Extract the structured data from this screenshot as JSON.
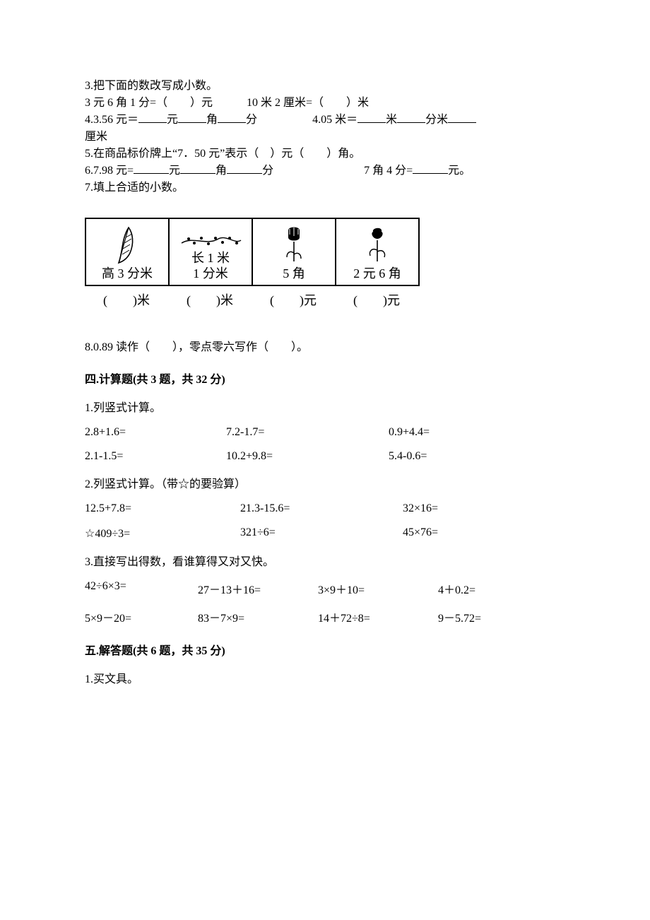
{
  "q3": {
    "prompt": "3.把下面的数改写成小数。",
    "item1_left": "3 元 6 角 1 分=（　　）元",
    "item1_right": "10 米 2 厘米=（　　）米",
    "item2_pre": "4.3.56 元＝",
    "item2_u1": "元",
    "item2_u2": "角",
    "item2_u3": "分",
    "item2_mid": "4.05 米＝",
    "item2_u4": "米",
    "item2_u5": "分米",
    "item2_tail": "厘米"
  },
  "q5": {
    "text": "5.在商品标价牌上“7．50 元”表示（　）元（　　）角。"
  },
  "q6": {
    "pre": "6.7.98 元=",
    "u1": "元",
    "u2": "角",
    "u3": "分",
    "mid": "7 角 4 分=",
    "tail": "元。"
  },
  "q7": {
    "prompt": "7.填上合适的小数。"
  },
  "fig": {
    "col1": {
      "icon": "feather",
      "label_l1": "",
      "label_l2": "高 3 分米",
      "caption": "(　　)米"
    },
    "col2": {
      "icon": "branch",
      "label_l1": "长 1 米",
      "label_l2": "1 分米",
      "caption": "(　　)米"
    },
    "col3": {
      "icon": "tulip",
      "label_l1": "",
      "label_l2": "5 角",
      "caption": "(　　)元"
    },
    "col4": {
      "icon": "rose",
      "label_l1": "",
      "label_l2": "2 元 6 角",
      "caption": "(　　)元"
    }
  },
  "q8": {
    "text": "8.0.89 读作（　　），零点零六写作（　　）。"
  },
  "sec4": {
    "title": "四.计算题(共 3 题，共 32 分)",
    "p1": "1.列竖式计算。",
    "row1": {
      "a": "2.8+1.6=",
      "b": "7.2-1.7=",
      "c": "0.9+4.4="
    },
    "row2": {
      "a": "2.1-1.5=",
      "b": "10.2+9.8=",
      "c": "5.4-0.6="
    },
    "p2": "2.列竖式计算。（带☆的要验算）",
    "row3": {
      "a": "12.5+7.8=",
      "b": "21.3-15.6=",
      "c": "32×16="
    },
    "row4": {
      "a": "☆409÷3=",
      "b": "321÷6=",
      "c": "45×76="
    },
    "p3": "3.直接写出得数，看谁算得又对又快。",
    "row5": {
      "a": "42÷6×3=",
      "b": "27－13＋16=",
      "c": "3×9＋10=",
      "d": "4＋0.2="
    },
    "row6": {
      "a": "5×9－20=",
      "b": "83－7×9=",
      "c": "14＋72÷8=",
      "d": "9－5.72="
    }
  },
  "sec5": {
    "title": "五.解答题(共 6 题，共 35 分)",
    "p1": "1.买文具。"
  },
  "layout": {
    "col3_w1": 200,
    "col3_w2": 230,
    "col3_w3": 160,
    "col3b_w1": 220,
    "col3b_w2": 230,
    "col3b_w3": 160,
    "col4_w1": 160,
    "col4_w2": 170,
    "col4_w3": 170,
    "col4_w4": 120
  }
}
